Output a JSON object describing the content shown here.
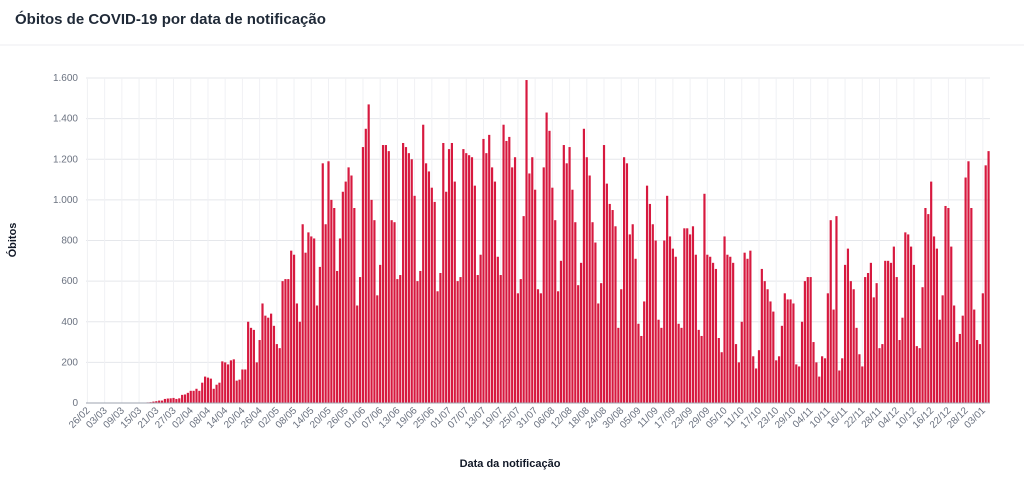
{
  "chart_data": {
    "type": "bar",
    "title": "Óbitos de COVID-19 por data de notificação",
    "y_label": "Óbitos",
    "x_label": "Data da notificação",
    "color": "#d7193f",
    "grid": true,
    "ylim": [
      0,
      1600
    ],
    "yticks": [
      0,
      200,
      400,
      600,
      800,
      {
        "value": 1000,
        "label": "1.000"
      },
      {
        "value": 1200,
        "label": "1.200"
      },
      {
        "value": 1400,
        "label": "1.400"
      },
      {
        "value": 1600,
        "label": "1.600"
      }
    ],
    "categories": [
      "26/02",
      null,
      null,
      null,
      null,
      null,
      "03/03",
      null,
      null,
      null,
      null,
      null,
      "09/03",
      null,
      null,
      null,
      null,
      null,
      "15/03",
      null,
      null,
      null,
      null,
      null,
      "21/03",
      null,
      null,
      null,
      null,
      null,
      "27/03",
      null,
      null,
      null,
      null,
      null,
      "02/04",
      null,
      null,
      null,
      null,
      null,
      "08/04",
      null,
      null,
      null,
      null,
      null,
      "14/04",
      null,
      null,
      null,
      null,
      null,
      "20/04",
      null,
      null,
      null,
      null,
      null,
      "26/04",
      null,
      null,
      null,
      null,
      null,
      "02/05",
      null,
      null,
      null,
      null,
      null,
      "08/05",
      null,
      null,
      null,
      null,
      null,
      "14/05",
      null,
      null,
      null,
      null,
      null,
      "20/05",
      null,
      null,
      null,
      null,
      null,
      "26/05",
      null,
      null,
      null,
      null,
      null,
      "01/06",
      null,
      null,
      null,
      null,
      null,
      "07/06",
      null,
      null,
      null,
      null,
      null,
      "13/06",
      null,
      null,
      null,
      null,
      null,
      "19/06",
      null,
      null,
      null,
      null,
      null,
      "25/06",
      null,
      null,
      null,
      null,
      null,
      "01/07",
      null,
      null,
      null,
      null,
      null,
      "07/07",
      null,
      null,
      null,
      null,
      null,
      "13/07",
      null,
      null,
      null,
      null,
      null,
      "19/07",
      null,
      null,
      null,
      null,
      null,
      "25/07",
      null,
      null,
      null,
      null,
      null,
      "31/07",
      null,
      null,
      null,
      null,
      null,
      "06/08",
      null,
      null,
      null,
      null,
      null,
      "12/08",
      null,
      null,
      null,
      null,
      null,
      "18/08",
      null,
      null,
      null,
      null,
      null,
      "24/08",
      null,
      null,
      null,
      null,
      null,
      "30/08",
      null,
      null,
      null,
      null,
      null,
      "05/09",
      null,
      null,
      null,
      null,
      null,
      "11/09",
      null,
      null,
      null,
      null,
      null,
      "17/09",
      null,
      null,
      null,
      null,
      null,
      "23/09",
      null,
      null,
      null,
      null,
      null,
      "29/09",
      null,
      null,
      null,
      null,
      null,
      "05/10",
      null,
      null,
      null,
      null,
      null,
      "11/10",
      null,
      null,
      null,
      null,
      null,
      "17/10",
      null,
      null,
      null,
      null,
      null,
      "23/10",
      null,
      null,
      null,
      null,
      null,
      "29/10",
      null,
      null,
      null,
      null,
      null,
      "04/11",
      null,
      null,
      null,
      null,
      null,
      "10/11",
      null,
      null,
      null,
      null,
      null,
      "16/11",
      null,
      null,
      null,
      null,
      null,
      "22/11",
      null,
      null,
      null,
      null,
      null,
      "28/11",
      null,
      null,
      null,
      null,
      null,
      "04/12",
      null,
      null,
      null,
      null,
      null,
      "10/12",
      null,
      null,
      null,
      null,
      null,
      "16/12",
      null,
      null,
      null,
      null,
      null,
      "22/12",
      null,
      null,
      null,
      null,
      null,
      "28/12",
      null,
      null,
      null,
      null,
      null,
      "03/01",
      null,
      null
    ],
    "values": [
      0,
      0,
      0,
      0,
      0,
      0,
      0,
      0,
      0,
      0,
      0,
      0,
      0,
      0,
      0,
      0,
      0,
      0,
      0,
      0,
      1,
      3,
      4,
      7,
      9,
      12,
      12,
      20,
      22,
      23,
      25,
      20,
      23,
      40,
      42,
      50,
      60,
      60,
      70,
      60,
      100,
      130,
      125,
      120,
      70,
      90,
      100,
      205,
      200,
      190,
      210,
      215,
      110,
      115,
      165,
      165,
      400,
      370,
      360,
      200,
      310,
      490,
      430,
      420,
      440,
      380,
      290,
      270,
      600,
      610,
      610,
      750,
      730,
      490,
      400,
      880,
      740,
      840,
      820,
      810,
      480,
      670,
      1180,
      880,
      1190,
      1000,
      960,
      650,
      810,
      1040,
      1090,
      1160,
      1120,
      960,
      480,
      620,
      1260,
      1350,
      1470,
      1000,
      900,
      530,
      680,
      1270,
      1270,
      1240,
      900,
      890,
      610,
      630,
      1280,
      1260,
      1230,
      1200,
      1020,
      600,
      650,
      1370,
      1180,
      1140,
      1060,
      990,
      550,
      640,
      1280,
      1040,
      1250,
      1280,
      1090,
      600,
      620,
      1250,
      1230,
      1220,
      1210,
      1070,
      630,
      730,
      1300,
      1230,
      1320,
      1160,
      1090,
      720,
      630,
      1370,
      1290,
      1310,
      1160,
      1210,
      540,
      610,
      920,
      1590,
      1130,
      1210,
      1050,
      560,
      540,
      1160,
      1430,
      1340,
      1060,
      900,
      550,
      700,
      1270,
      1180,
      1260,
      1050,
      890,
      580,
      690,
      1350,
      1210,
      1120,
      890,
      790,
      490,
      590,
      1270,
      1080,
      980,
      950,
      870,
      370,
      560,
      1210,
      1180,
      830,
      880,
      710,
      390,
      330,
      500,
      1070,
      980,
      880,
      800,
      410,
      370,
      800,
      1020,
      820,
      760,
      720,
      390,
      370,
      860,
      860,
      830,
      870,
      730,
      360,
      330,
      1030,
      730,
      720,
      690,
      660,
      320,
      250,
      820,
      730,
      720,
      690,
      290,
      200,
      400,
      740,
      710,
      750,
      230,
      170,
      260,
      660,
      600,
      560,
      500,
      450,
      210,
      230,
      380,
      540,
      510,
      510,
      490,
      190,
      180,
      400,
      600,
      620,
      620,
      300,
      200,
      130,
      230,
      220,
      540,
      900,
      460,
      920,
      160,
      220,
      680,
      760,
      600,
      560,
      370,
      240,
      180,
      620,
      640,
      690,
      520,
      590,
      270,
      290,
      700,
      700,
      690,
      770,
      620,
      310,
      420,
      840,
      830,
      770,
      680,
      280,
      270,
      570,
      960,
      930,
      1090,
      820,
      760,
      410,
      530,
      970,
      960,
      770,
      480,
      300,
      340,
      430,
      1110,
      1190,
      960,
      460,
      310,
      290,
      540,
      1170,
      1240
    ]
  }
}
